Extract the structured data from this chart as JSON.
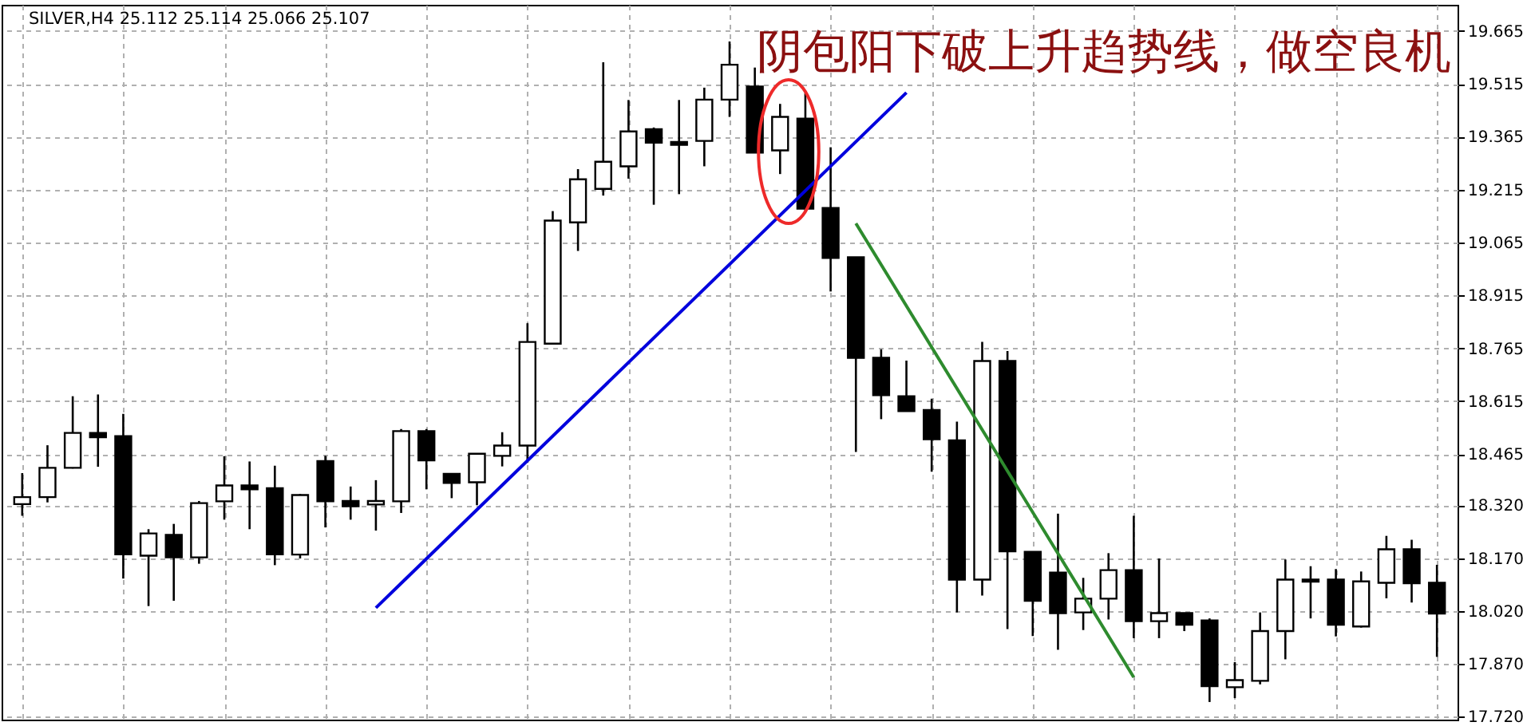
{
  "chart_data": {
    "type": "candlestick",
    "title": "SILVER,H4  25.112 25.114 25.066 25.107",
    "annotations": [
      "阴包阳下破上升趋势线，做空良机"
    ],
    "categories": [
      null,
      null,
      null,
      null,
      null,
      null,
      null,
      null,
      null,
      null,
      null,
      null,
      null,
      null,
      null,
      null,
      null,
      null,
      null,
      null,
      null,
      null,
      null,
      null,
      null,
      null,
      null,
      null,
      null,
      null,
      null,
      null,
      null,
      null,
      null,
      null,
      null,
      null,
      null,
      null,
      null,
      null,
      null,
      null,
      null,
      null,
      null,
      null,
      null,
      null,
      null,
      null,
      null,
      null,
      null,
      null,
      null
    ],
    "ohlc": [
      [
        18.323,
        18.411,
        18.29,
        18.343
      ],
      [
        18.343,
        18.49,
        18.328,
        18.426
      ],
      [
        18.426,
        18.629,
        18.424,
        18.525
      ],
      [
        18.525,
        18.634,
        18.429,
        18.513
      ],
      [
        18.516,
        18.579,
        18.112,
        18.181
      ],
      [
        18.177,
        18.252,
        18.034,
        18.24
      ],
      [
        18.236,
        18.267,
        18.049,
        18.172
      ],
      [
        18.172,
        18.332,
        18.154,
        18.326
      ],
      [
        18.331,
        18.459,
        18.279,
        18.376
      ],
      [
        18.376,
        18.444,
        18.252,
        18.365
      ],
      [
        18.368,
        18.432,
        18.15,
        18.181
      ],
      [
        18.18,
        18.352,
        18.169,
        18.349
      ],
      [
        18.445,
        18.46,
        18.257,
        18.331
      ],
      [
        18.332,
        18.373,
        18.279,
        18.317
      ],
      [
        18.322,
        18.391,
        18.248,
        18.332
      ],
      [
        18.331,
        18.536,
        18.298,
        18.53
      ],
      [
        18.53,
        18.536,
        18.365,
        18.447
      ],
      [
        18.409,
        18.409,
        18.34,
        18.383
      ],
      [
        18.385,
        18.466,
        18.32,
        18.466
      ],
      [
        18.46,
        18.527,
        18.43,
        18.489
      ],
      [
        18.489,
        18.836,
        18.441,
        18.783
      ],
      [
        18.778,
        19.154,
        18.778,
        19.127
      ],
      [
        19.122,
        19.273,
        19.041,
        19.244
      ],
      [
        19.217,
        19.576,
        19.198,
        19.294
      ],
      [
        19.281,
        19.469,
        19.246,
        19.38
      ],
      [
        19.386,
        19.391,
        19.172,
        19.348
      ],
      [
        19.35,
        19.469,
        19.202,
        19.342
      ],
      [
        19.353,
        19.504,
        19.281,
        19.47
      ],
      [
        19.47,
        19.635,
        19.421,
        19.569
      ],
      [
        19.507,
        19.561,
        19.32,
        19.32
      ],
      [
        19.326,
        19.458,
        19.259,
        19.421
      ],
      [
        19.416,
        19.489,
        19.154,
        19.161
      ],
      [
        19.163,
        19.335,
        18.926,
        19.021
      ],
      [
        19.023,
        19.023,
        18.471,
        18.738
      ],
      [
        18.738,
        18.762,
        18.564,
        18.632
      ],
      [
        18.629,
        18.73,
        18.587,
        18.587
      ],
      [
        18.59,
        18.622,
        18.415,
        18.507
      ],
      [
        18.504,
        18.557,
        18.016,
        18.109
      ],
      [
        18.109,
        18.783,
        18.064,
        18.729
      ],
      [
        18.729,
        18.757,
        17.969,
        18.189
      ],
      [
        18.188,
        18.189,
        17.949,
        18.049
      ],
      [
        18.129,
        18.296,
        17.91,
        18.014
      ],
      [
        18.016,
        18.114,
        17.966,
        18.055
      ],
      [
        18.055,
        18.184,
        17.996,
        18.136
      ],
      [
        18.136,
        18.29,
        17.943,
        17.991
      ],
      [
        17.991,
        18.169,
        17.943,
        18.014
      ],
      [
        18.014,
        18.014,
        17.963,
        17.981
      ],
      [
        17.993,
        17.999,
        17.762,
        17.807
      ],
      [
        17.804,
        17.875,
        17.773,
        17.824
      ],
      [
        17.822,
        18.016,
        17.812,
        17.963
      ],
      [
        17.963,
        18.166,
        17.883,
        18.109
      ],
      [
        18.109,
        18.147,
        17.999,
        18.103
      ],
      [
        18.109,
        18.139,
        17.948,
        17.981
      ],
      [
        17.976,
        18.132,
        17.973,
        18.104
      ],
      [
        18.1,
        18.233,
        18.056,
        18.195
      ],
      [
        18.195,
        18.222,
        18.044,
        18.099
      ],
      [
        18.1,
        18.151,
        17.89,
        18.013
      ]
    ],
    "series": [
      {
        "type": "line",
        "values": [
          null,
          null,
          null,
          null,
          null,
          null,
          null,
          null,
          null,
          null,
          null,
          null,
          null,
          null,
          18.029,
          null,
          null,
          null,
          null,
          null,
          null,
          null,
          null,
          null,
          null,
          null,
          null,
          null,
          null,
          null,
          null,
          null,
          null,
          null,
          null,
          19.49,
          null,
          null,
          null,
          null,
          null,
          null,
          null,
          null,
          null,
          null,
          null,
          null,
          null,
          null,
          null,
          null,
          null,
          null,
          null,
          null,
          null
        ],
        "color": "#0000dd"
      },
      {
        "type": "line",
        "values": [
          null,
          null,
          null,
          null,
          null,
          null,
          null,
          null,
          null,
          null,
          null,
          null,
          null,
          null,
          null,
          null,
          null,
          null,
          null,
          null,
          null,
          null,
          null,
          null,
          null,
          null,
          null,
          null,
          null,
          null,
          null,
          null,
          null,
          19.119,
          null,
          null,
          null,
          null,
          null,
          null,
          null,
          null,
          null,
          null,
          17.832,
          null,
          null,
          null,
          null,
          null,
          null,
          null,
          null,
          null,
          null,
          null,
          null
        ],
        "color": "#2e8b2e"
      }
    ],
    "ylim": [
      17.712,
      19.739
    ],
    "yticks": [
      {
        "value": 17.72,
        "label": "17.720"
      },
      {
        "value": 17.87,
        "label": "17.870"
      },
      {
        "value": 18.02,
        "label": "18.020"
      },
      {
        "value": 18.17,
        "label": "18.170"
      },
      {
        "value": 18.32,
        "label": "18.320"
      },
      18.465,
      18.615,
      18.765,
      18.915,
      19.065,
      19.215,
      19.365,
      19.515,
      19.665
    ],
    "grid": true,
    "tick_labels": "y"
  }
}
